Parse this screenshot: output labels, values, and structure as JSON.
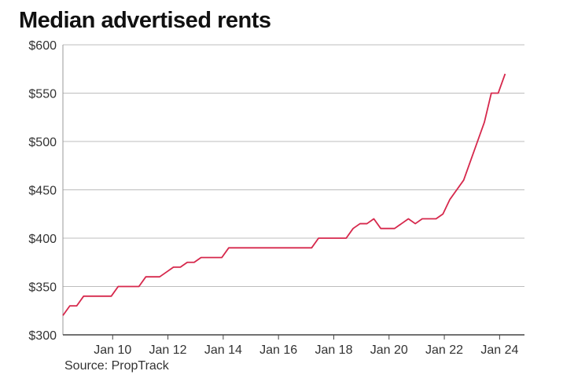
{
  "chart_data": {
    "type": "line",
    "title": "Median advertised rents",
    "source": "Source: PropTrack",
    "xlabel": "",
    "ylabel": "",
    "ylim": [
      300,
      600
    ],
    "y_ticks": [
      300,
      350,
      400,
      450,
      500,
      550,
      600
    ],
    "y_tick_labels": [
      "$300",
      "$350",
      "$400",
      "$450",
      "$500",
      "$550",
      "$600"
    ],
    "x_ticks": [
      2010,
      2012,
      2014,
      2016,
      2018,
      2020,
      2022,
      2024
    ],
    "x_tick_labels": [
      "Jan 10",
      "Jan 12",
      "Jan 14",
      "Jan 16",
      "Jan 18",
      "Jan 20",
      "Jan 22",
      "Jan 24"
    ],
    "xlim": [
      2008.2,
      2024.9
    ],
    "grid": true,
    "line_color": "#d6284c",
    "series": [
      {
        "x": [
          2008.2,
          2008.45,
          2008.7,
          2008.95,
          2009.2,
          2009.45,
          2009.7,
          2009.95,
          2010.2,
          2010.45,
          2010.7,
          2010.95,
          2011.2,
          2011.45,
          2011.7,
          2011.95,
          2012.2,
          2012.45,
          2012.7,
          2012.95,
          2013.2,
          2013.45,
          2013.7,
          2013.95,
          2014.2,
          2014.45,
          2014.7,
          2014.95,
          2015.2,
          2015.45,
          2015.7,
          2015.95,
          2016.2,
          2016.45,
          2016.7,
          2016.95,
          2017.2,
          2017.45,
          2017.7,
          2017.95,
          2018.2,
          2018.45,
          2018.7,
          2018.95,
          2019.2,
          2019.45,
          2019.7,
          2019.95,
          2020.2,
          2020.45,
          2020.7,
          2020.95,
          2021.2,
          2021.45,
          2021.7,
          2021.95,
          2022.2,
          2022.45,
          2022.7,
          2022.95,
          2023.2,
          2023.45,
          2023.7,
          2023.95,
          2024.2
        ],
        "values": [
          320,
          330,
          330,
          340,
          340,
          340,
          340,
          340,
          350,
          350,
          350,
          350,
          360,
          360,
          360,
          365,
          370,
          370,
          375,
          375,
          380,
          380,
          380,
          380,
          390,
          390,
          390,
          390,
          390,
          390,
          390,
          390,
          390,
          390,
          390,
          390,
          390,
          400,
          400,
          400,
          400,
          400,
          410,
          415,
          415,
          420,
          410,
          410,
          410,
          415,
          420,
          415,
          420,
          420,
          420,
          425,
          440,
          450,
          460,
          480,
          500,
          520,
          550,
          550,
          570
        ]
      }
    ]
  }
}
